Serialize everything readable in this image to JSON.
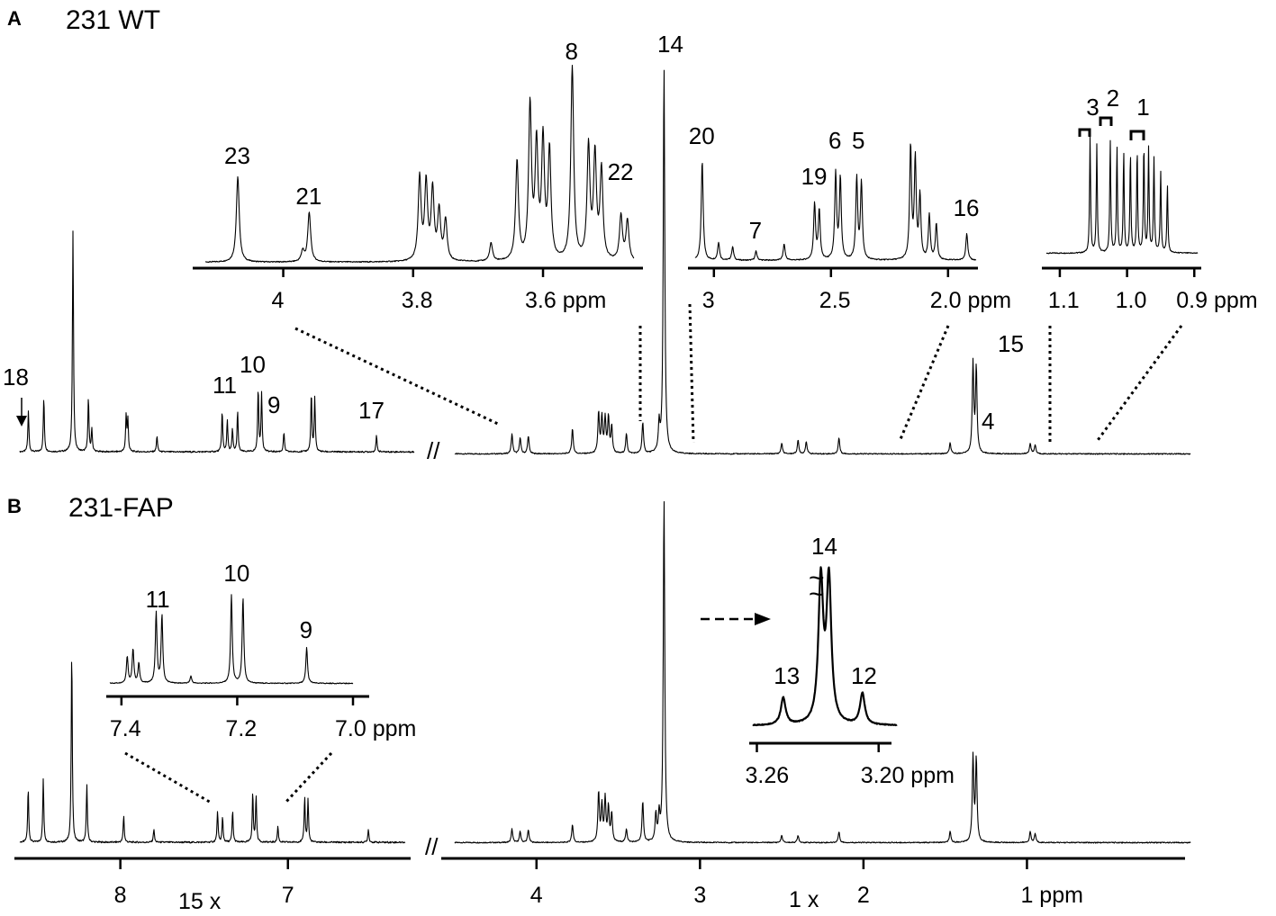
{
  "chart_data": [
    {
      "type": "line",
      "panel": "A",
      "title": "231 WT",
      "xlabel": "ppm",
      "main": {
        "segments": [
          {
            "xlim": [
              8.6,
              6.3
            ],
            "peaks": [
              {
                "x": 8.55,
                "h": 45
              },
              {
                "x": 8.46,
                "h": 60
              },
              {
                "x": 8.29,
                "h": 245
              },
              {
                "x": 8.2,
                "h": 60
              },
              {
                "x": 8.18,
                "h": 25
              },
              {
                "x": 7.98,
                "h": 40
              },
              {
                "x": 7.97,
                "h": 35
              },
              {
                "x": 7.8,
                "h": 18
              },
              {
                "x": 7.42,
                "h": 45
              },
              {
                "x": 7.39,
                "h": 35
              },
              {
                "x": 7.36,
                "h": 25
              },
              {
                "x": 7.33,
                "h": 45
              },
              {
                "x": 7.21,
                "h": 70
              },
              {
                "x": 7.19,
                "h": 65
              },
              {
                "x": 7.06,
                "h": 22
              },
              {
                "x": 6.9,
                "h": 65
              },
              {
                "x": 6.88,
                "h": 60
              },
              {
                "x": 6.52,
                "h": 18
              }
            ]
          },
          {
            "xlim": [
              4.5,
              0.0
            ],
            "peaks": [
              {
                "x": 4.15,
                "h": 22
              },
              {
                "x": 4.1,
                "h": 18
              },
              {
                "x": 4.05,
                "h": 20
              },
              {
                "x": 3.78,
                "h": 28
              },
              {
                "x": 3.62,
                "h": 45
              },
              {
                "x": 3.6,
                "h": 40
              },
              {
                "x": 3.58,
                "h": 38
              },
              {
                "x": 3.56,
                "h": 40
              },
              {
                "x": 3.54,
                "h": 30
              },
              {
                "x": 3.45,
                "h": 22
              },
              {
                "x": 3.35,
                "h": 35
              },
              {
                "x": 3.25,
                "h": 30
              },
              {
                "x": 3.22,
                "h": 430
              },
              {
                "x": 2.5,
                "h": 12
              },
              {
                "x": 2.4,
                "h": 15
              },
              {
                "x": 2.35,
                "h": 14
              },
              {
                "x": 2.15,
                "h": 18
              },
              {
                "x": 1.47,
                "h": 12
              },
              {
                "x": 1.33,
                "h": 100
              },
              {
                "x": 1.31,
                "h": 95
              },
              {
                "x": 0.98,
                "h": 12
              },
              {
                "x": 0.95,
                "h": 10
              }
            ]
          }
        ],
        "peak_labels": [
          {
            "text": "18",
            "x": 8.5
          },
          {
            "text": "11",
            "x": 7.38
          },
          {
            "text": "10",
            "x": 7.22
          },
          {
            "text": "9",
            "x": 7.06
          },
          {
            "text": "17",
            "x": 6.52
          },
          {
            "text": "14",
            "x": 3.22
          },
          {
            "text": "15",
            "x": 1.32
          },
          {
            "text": "4",
            "x": 1.47
          }
        ]
      },
      "insets": [
        {
          "xlim": [
            4.12,
            3.46
          ],
          "ticks": [
            {
              "value": 4,
              "label": "4"
            },
            {
              "value": 3.8,
              "label": "3.8"
            },
            {
              "value": 3.6,
              "label": "3.6 ppm"
            }
          ],
          "peaks": [
            {
              "x": 4.07,
              "h": 95
            },
            {
              "x": 3.96,
              "h": 55
            },
            {
              "x": 3.97,
              "h": 12
            },
            {
              "x": 3.79,
              "h": 92
            },
            {
              "x": 3.78,
              "h": 85
            },
            {
              "x": 3.77,
              "h": 78
            },
            {
              "x": 3.76,
              "h": 55
            },
            {
              "x": 3.75,
              "h": 45
            },
            {
              "x": 3.68,
              "h": 20
            },
            {
              "x": 3.64,
              "h": 110
            },
            {
              "x": 3.62,
              "h": 170
            },
            {
              "x": 3.61,
              "h": 125
            },
            {
              "x": 3.6,
              "h": 130
            },
            {
              "x": 3.59,
              "h": 120
            },
            {
              "x": 3.555,
              "h": 215
            },
            {
              "x": 3.53,
              "h": 125
            },
            {
              "x": 3.52,
              "h": 115
            },
            {
              "x": 3.51,
              "h": 100
            },
            {
              "x": 3.48,
              "h": 50
            },
            {
              "x": 3.47,
              "h": 45
            }
          ],
          "labels": [
            {
              "text": "23",
              "x": 4.07
            },
            {
              "text": "21",
              "x": 3.96
            },
            {
              "text": "8",
              "x": 3.555
            },
            {
              "text": "22",
              "x": 3.48
            }
          ]
        },
        {
          "xlim": [
            3.08,
            1.88
          ],
          "ticks": [
            {
              "value": 3.0,
              "label": "3"
            },
            {
              "value": 2.5,
              "label": "2.5"
            },
            {
              "value": 2.0,
              "label": "2.0 ppm"
            }
          ],
          "peaks": [
            {
              "x": 3.05,
              "h": 110
            },
            {
              "x": 2.98,
              "h": 20
            },
            {
              "x": 2.92,
              "h": 15
            },
            {
              "x": 2.82,
              "h": 10
            },
            {
              "x": 2.7,
              "h": 18
            },
            {
              "x": 2.57,
              "h": 62
            },
            {
              "x": 2.55,
              "h": 55
            },
            {
              "x": 2.48,
              "h": 95
            },
            {
              "x": 2.46,
              "h": 90
            },
            {
              "x": 2.39,
              "h": 90
            },
            {
              "x": 2.37,
              "h": 85
            },
            {
              "x": 2.16,
              "h": 125
            },
            {
              "x": 2.14,
              "h": 110
            },
            {
              "x": 2.12,
              "h": 70
            },
            {
              "x": 2.08,
              "h": 50
            },
            {
              "x": 2.05,
              "h": 40
            },
            {
              "x": 1.92,
              "h": 30
            }
          ],
          "labels": [
            {
              "text": "20",
              "x": 3.05
            },
            {
              "text": "7",
              "x": 2.82
            },
            {
              "text": "19",
              "x": 2.57
            },
            {
              "text": "6",
              "x": 2.48
            },
            {
              "text": "5",
              "x": 2.38
            },
            {
              "text": "16",
              "x": 1.92
            }
          ]
        },
        {
          "xlim": [
            1.12,
            0.895
          ],
          "ticks": [
            {
              "value": 1.1,
              "label": "1.1"
            },
            {
              "value": 1.0,
              "label": "1.0"
            },
            {
              "value": 0.9,
              "label": "0.9 ppm"
            }
          ],
          "peaks": [
            {
              "x": 1.055,
              "h": 128
            },
            {
              "x": 1.045,
              "h": 120
            },
            {
              "x": 1.025,
              "h": 125
            },
            {
              "x": 1.015,
              "h": 118
            },
            {
              "x": 1.005,
              "h": 112
            },
            {
              "x": 0.995,
              "h": 110
            },
            {
              "x": 0.985,
              "h": 115
            },
            {
              "x": 0.975,
              "h": 120
            },
            {
              "x": 0.968,
              "h": 115
            },
            {
              "x": 0.96,
              "h": 105
            },
            {
              "x": 0.95,
              "h": 90
            },
            {
              "x": 0.94,
              "h": 75
            }
          ],
          "labels": [
            {
              "text": "3",
              "x": 1.05
            },
            {
              "text": "2",
              "x": 1.02
            },
            {
              "text": "1",
              "x": 0.975
            }
          ]
        }
      ]
    },
    {
      "type": "line",
      "panel": "B",
      "title": "231-FAP",
      "xlabel": "ppm",
      "main": {
        "segments": [
          {
            "xlim": [
              8.6,
              6.3
            ],
            "scale_label": "15 x",
            "ticks": [
              {
                "value": 8,
                "label": "8"
              },
              {
                "value": 7,
                "label": "7"
              }
            ],
            "peaks": [
              {
                "x": 8.55,
                "h": 60
              },
              {
                "x": 8.46,
                "h": 70
              },
              {
                "x": 8.29,
                "h": 215
              },
              {
                "x": 8.2,
                "h": 65
              },
              {
                "x": 7.98,
                "h": 30
              },
              {
                "x": 7.8,
                "h": 15
              },
              {
                "x": 7.42,
                "h": 35
              },
              {
                "x": 7.39,
                "h": 28
              },
              {
                "x": 7.33,
                "h": 35
              },
              {
                "x": 7.21,
                "h": 55
              },
              {
                "x": 7.19,
                "h": 52
              },
              {
                "x": 7.06,
                "h": 18
              },
              {
                "x": 6.9,
                "h": 50
              },
              {
                "x": 6.88,
                "h": 48
              },
              {
                "x": 6.52,
                "h": 15
              }
            ]
          },
          {
            "xlim": [
              4.5,
              0.0
            ],
            "scale_label": "1 x",
            "ticks": [
              {
                "value": 4,
                "label": "4"
              },
              {
                "value": 3,
                "label": "3"
              },
              {
                "value": 2,
                "label": "2"
              },
              {
                "value": 1,
                "label": "1  ppm"
              }
            ],
            "peaks": [
              {
                "x": 4.15,
                "h": 15
              },
              {
                "x": 4.1,
                "h": 12
              },
              {
                "x": 4.05,
                "h": 14
              },
              {
                "x": 3.78,
                "h": 20
              },
              {
                "x": 3.62,
                "h": 55
              },
              {
                "x": 3.6,
                "h": 40
              },
              {
                "x": 3.58,
                "h": 48
              },
              {
                "x": 3.56,
                "h": 38
              },
              {
                "x": 3.54,
                "h": 32
              },
              {
                "x": 3.45,
                "h": 15
              },
              {
                "x": 3.35,
                "h": 45
              },
              {
                "x": 3.27,
                "h": 30
              },
              {
                "x": 3.25,
                "h": 28
              },
              {
                "x": 3.22,
                "h": 382
              },
              {
                "x": 2.5,
                "h": 8
              },
              {
                "x": 2.4,
                "h": 8
              },
              {
                "x": 2.15,
                "h": 12
              },
              {
                "x": 1.47,
                "h": 12
              },
              {
                "x": 1.33,
                "h": 95
              },
              {
                "x": 1.31,
                "h": 92
              },
              {
                "x": 0.98,
                "h": 12
              },
              {
                "x": 0.95,
                "h": 10
              }
            ]
          }
        ]
      },
      "insets": [
        {
          "xlim": [
            7.42,
            7.0
          ],
          "ticks": [
            {
              "value": 7.4,
              "label": "7.4"
            },
            {
              "value": 7.2,
              "label": "7.2"
            },
            {
              "value": 7.0,
              "label": "7.0 ppm"
            }
          ],
          "peaks": [
            {
              "x": 7.39,
              "h": 30
            },
            {
              "x": 7.38,
              "h": 38
            },
            {
              "x": 7.37,
              "h": 22
            },
            {
              "x": 7.34,
              "h": 78
            },
            {
              "x": 7.33,
              "h": 75
            },
            {
              "x": 7.28,
              "h": 8
            },
            {
              "x": 7.21,
              "h": 98
            },
            {
              "x": 7.19,
              "h": 95
            },
            {
              "x": 7.08,
              "h": 40
            }
          ],
          "labels": [
            {
              "text": "11",
              "x": 7.335
            },
            {
              "text": "10",
              "x": 7.2
            },
            {
              "text": "9",
              "x": 7.08
            }
          ]
        },
        {
          "xlim": [
            3.262,
            3.191
          ],
          "ticks": [
            {
              "value": 3.26,
              "label": "3.26"
            },
            {
              "value": 3.2,
              "label": "3.20 ppm"
            }
          ],
          "peaks": [
            {
              "x": 3.247,
              "h": 30
            },
            {
              "x": 3.2285,
              "h": 158
            },
            {
              "x": 3.2245,
              "h": 158
            },
            {
              "x": 3.208,
              "h": 35
            }
          ],
          "labels": [
            {
              "text": "14",
              "x": 3.2265
            },
            {
              "text": "13",
              "x": 3.245
            },
            {
              "text": "12",
              "x": 3.207
            }
          ]
        }
      ]
    }
  ],
  "break_mark": "//",
  "break_mark_b": "//",
  "tilde": "~"
}
